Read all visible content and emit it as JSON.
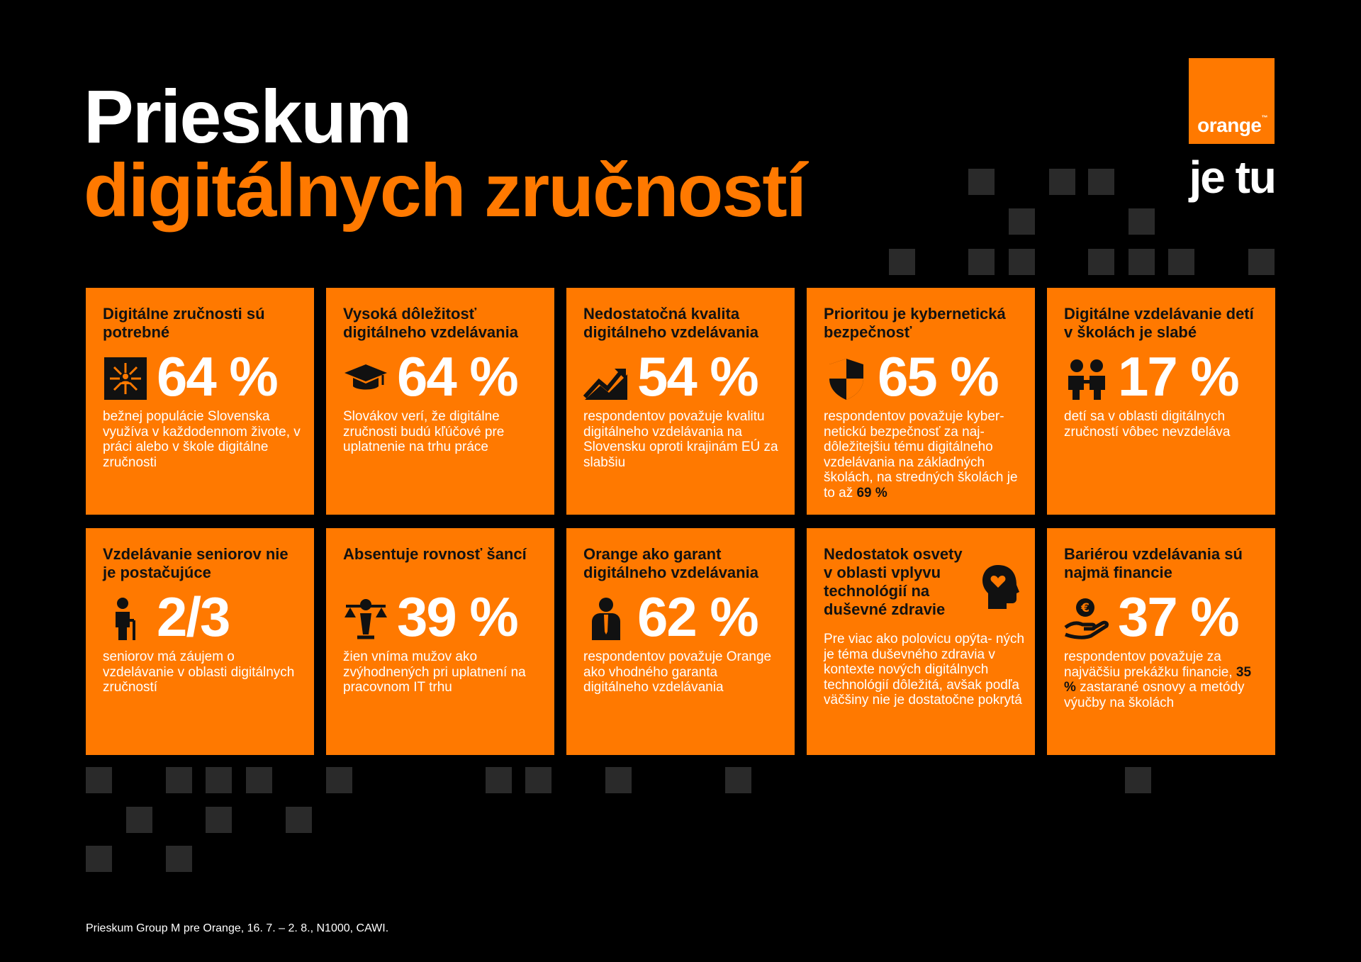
{
  "title": {
    "line1": "Prieskum",
    "line2": "digitálnych zručností"
  },
  "brand": {
    "logo_text": "orange",
    "trademark": "™",
    "slogan": "je tu"
  },
  "colors": {
    "accent": "#ff7900",
    "background": "#000000",
    "square": "#2a2a2a"
  },
  "cards": [
    {
      "heading": "Digitálne zručnosti sú potrebné",
      "icon": "network-person-icon",
      "value": "64 %",
      "desc": "bežnej populácie Slovenska využíva v každodennom živote, v práci alebo v škole digitálne zručnosti"
    },
    {
      "heading": "Vysoká dôležitosť digitálneho vzdelávania",
      "icon": "graduation-cap-icon",
      "value": "64 %",
      "desc": "Slovákov verí, že digitálne zručnosti budú kľúčové pre uplatnenie na trhu práce"
    },
    {
      "heading": "Nedostatočná kvalita digitálneho vzdelávania",
      "icon": "trend-chart-icon",
      "value": "54 %",
      "desc": "respondentov považuje kvalitu digitálneho vzdelávania na Slovensku oproti krajinám EÚ za slabšiu"
    },
    {
      "heading": "Prioritou je kybernetická bezpečnosť",
      "icon": "shield-icon",
      "value": "65 %",
      "desc": "respondentov považuje kyber- netickú bezpečnosť za naj- dôležitejšiu tému digitálneho vzdelávania na základných školách, na stredných školách je to až",
      "desc_highlight": "69 %"
    },
    {
      "heading": "Digitálne vzdelávanie detí v školách je slabé",
      "icon": "children-icon",
      "value": "17 %",
      "desc": "detí sa v oblasti digitálnych zručností vôbec nevzdeláva"
    },
    {
      "heading": "Vzdelávanie seniorov nie je postačujúce",
      "icon": "senior-icon",
      "value": "2/3",
      "desc": "seniorov má záujem o vzdelávanie v oblasti digitálnych zručností"
    },
    {
      "heading": "Absentuje rovnosť šancí",
      "icon": "gender-scale-icon",
      "value": "39 %",
      "desc": "žien vníma mužov ako zvýhodnených pri uplatnení na pracovnom IT trhu"
    },
    {
      "heading": "Orange ako garant digitálneho vzdelávania",
      "icon": "businessman-icon",
      "value": "62 %",
      "desc": "respondentov považuje Orange ako vhodného garanta digitálneho vzdelávania"
    },
    {
      "heading": "Nedostatok osvety v oblasti vplyvu technológií na duševné zdravie",
      "icon": "head-heart-icon",
      "value": "",
      "desc": "Pre viac ako polovicu opýta- ných je téma duševného zdravia v kontexte nových digitálnych technológií dôležitá, avšak podľa väčšiny nie je dostatočne pokrytá"
    },
    {
      "heading": "Bariérou vzdelávania sú najmä financie",
      "icon": "euro-hand-icon",
      "value": "37 %",
      "desc_highlight": "35 %",
      "desc_pre": "respondentov považuje za najväčšiu prekážku financie,",
      "desc_post": "zastarané osnovy a metódy výučby na školách"
    }
  ],
  "footnote": "Prieskum Group M pre Orange, 16. 7. – 2. 8., N1000, CAWI."
}
